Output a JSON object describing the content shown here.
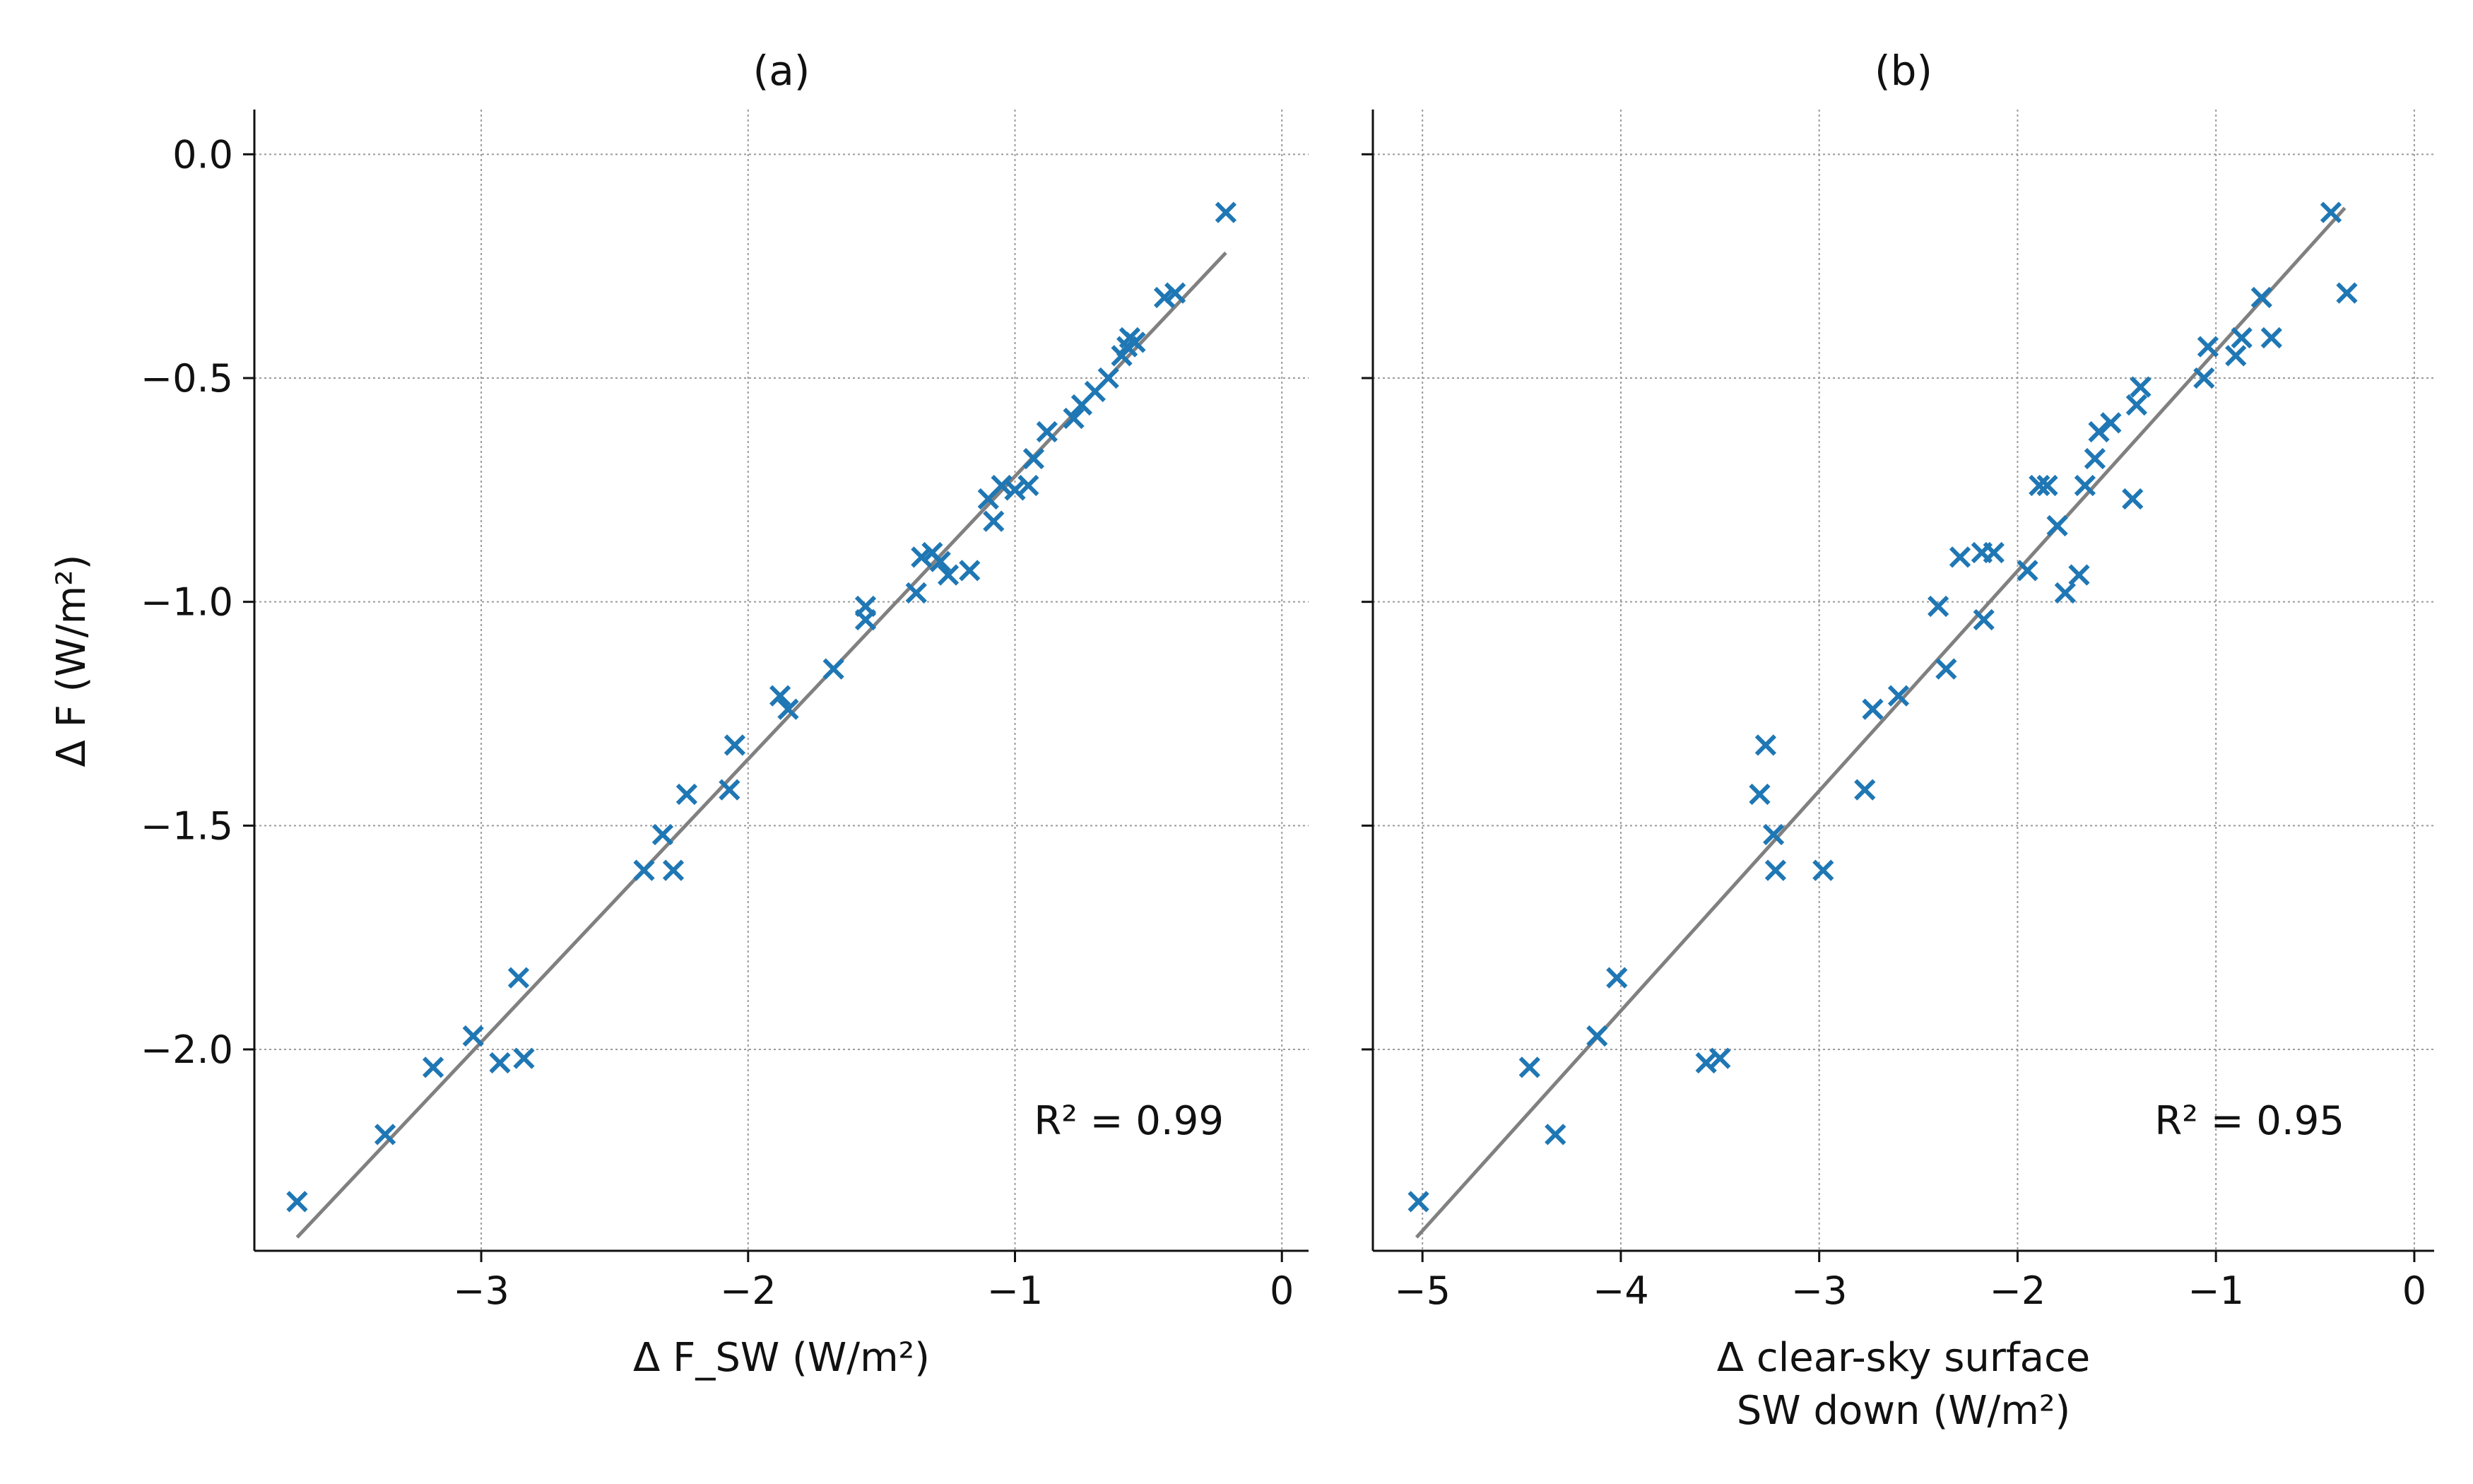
{
  "chart_data": [
    {
      "type": "scatter",
      "title": "(a)",
      "xlabel": "Δ F_SW (W/m²)",
      "ylabel": "Δ F (W/m²)",
      "xlim": [
        -3.85,
        0.1
      ],
      "ylim": [
        -2.45,
        0.1
      ],
      "xticks": [
        -3,
        -2,
        -1,
        0
      ],
      "xtick_labels": [
        "−3",
        "−2",
        "−1",
        "0"
      ],
      "yticks": [
        0.0,
        -0.5,
        -1.0,
        -1.5,
        -2.0
      ],
      "ytick_labels": [
        "0.0",
        "−0.5",
        "−1.0",
        "−1.5",
        "−2.0"
      ],
      "grid": true,
      "marker_color": "#1f77b4",
      "fit_color": "#808080",
      "annotation": "R² = 0.99",
      "fit_line": {
        "x": [
          -3.69,
          -0.21
        ],
        "y": [
          -2.42,
          -0.22
        ]
      },
      "points": [
        {
          "x": -3.69,
          "y": -2.34
        },
        {
          "x": -3.36,
          "y": -2.19
        },
        {
          "x": -3.18,
          "y": -2.04
        },
        {
          "x": -3.03,
          "y": -1.97
        },
        {
          "x": -2.93,
          "y": -2.03
        },
        {
          "x": -2.86,
          "y": -1.84
        },
        {
          "x": -2.84,
          "y": -2.02
        },
        {
          "x": -2.39,
          "y": -1.6
        },
        {
          "x": -2.32,
          "y": -1.52
        },
        {
          "x": -2.28,
          "y": -1.6
        },
        {
          "x": -2.23,
          "y": -1.43
        },
        {
          "x": -2.07,
          "y": -1.42
        },
        {
          "x": -2.05,
          "y": -1.32
        },
        {
          "x": -1.88,
          "y": -1.21
        },
        {
          "x": -1.85,
          "y": -1.24
        },
        {
          "x": -1.68,
          "y": -1.15
        },
        {
          "x": -1.56,
          "y": -1.01
        },
        {
          "x": -1.56,
          "y": -1.04
        },
        {
          "x": -1.37,
          "y": -0.98
        },
        {
          "x": -1.35,
          "y": -0.9
        },
        {
          "x": -1.31,
          "y": -0.89
        },
        {
          "x": -1.28,
          "y": -0.91
        },
        {
          "x": -1.25,
          "y": -0.94
        },
        {
          "x": -1.17,
          "y": -0.93
        },
        {
          "x": -1.1,
          "y": -0.77
        },
        {
          "x": -1.08,
          "y": -0.82
        },
        {
          "x": -1.05,
          "y": -0.74
        },
        {
          "x": -1.0,
          "y": -0.75
        },
        {
          "x": -0.95,
          "y": -0.74
        },
        {
          "x": -0.93,
          "y": -0.68
        },
        {
          "x": -0.88,
          "y": -0.62
        },
        {
          "x": -0.78,
          "y": -0.59
        },
        {
          "x": -0.75,
          "y": -0.56
        },
        {
          "x": -0.7,
          "y": -0.53
        },
        {
          "x": -0.65,
          "y": -0.5
        },
        {
          "x": -0.6,
          "y": -0.45
        },
        {
          "x": -0.58,
          "y": -0.43
        },
        {
          "x": -0.57,
          "y": -0.41
        },
        {
          "x": -0.55,
          "y": -0.42
        },
        {
          "x": -0.44,
          "y": -0.32
        },
        {
          "x": -0.4,
          "y": -0.31
        },
        {
          "x": -0.21,
          "y": -0.13
        }
      ]
    },
    {
      "type": "scatter",
      "title": "(b)",
      "xlabel": [
        "Δ clear-sky surface",
        "SW down (W/m²)"
      ],
      "ylabel": "",
      "xlim": [
        -5.25,
        0.1
      ],
      "ylim": [
        -2.45,
        0.1
      ],
      "xticks": [
        -5,
        -4,
        -3,
        -2,
        -1,
        0
      ],
      "xtick_labels": [
        "−5",
        "−4",
        "−3",
        "−2",
        "−1",
        "0"
      ],
      "yticks": [
        0.0,
        -0.5,
        -1.0,
        -1.5,
        -2.0
      ],
      "grid": true,
      "marker_color": "#1f77b4",
      "fit_color": "#808080",
      "annotation": "R² = 0.95",
      "fit_line": {
        "x": [
          -5.03,
          -0.35
        ],
        "y": [
          -2.42,
          -0.12
        ]
      },
      "points": [
        {
          "x": -5.02,
          "y": -2.34
        },
        {
          "x": -4.46,
          "y": -2.04
        },
        {
          "x": -4.33,
          "y": -2.19
        },
        {
          "x": -4.12,
          "y": -1.97
        },
        {
          "x": -4.02,
          "y": -1.84
        },
        {
          "x": -3.57,
          "y": -2.03
        },
        {
          "x": -3.5,
          "y": -2.02
        },
        {
          "x": -3.3,
          "y": -1.43
        },
        {
          "x": -3.27,
          "y": -1.32
        },
        {
          "x": -3.23,
          "y": -1.52
        },
        {
          "x": -3.22,
          "y": -1.6
        },
        {
          "x": -2.98,
          "y": -1.6
        },
        {
          "x": -2.77,
          "y": -1.42
        },
        {
          "x": -2.73,
          "y": -1.24
        },
        {
          "x": -2.6,
          "y": -1.21
        },
        {
          "x": -2.4,
          "y": -1.01
        },
        {
          "x": -2.36,
          "y": -1.15
        },
        {
          "x": -2.29,
          "y": -0.9
        },
        {
          "x": -2.18,
          "y": -0.89
        },
        {
          "x": -2.17,
          "y": -1.04
        },
        {
          "x": -2.12,
          "y": -0.89
        },
        {
          "x": -1.95,
          "y": -0.93
        },
        {
          "x": -1.89,
          "y": -0.74
        },
        {
          "x": -1.85,
          "y": -0.74
        },
        {
          "x": -1.8,
          "y": -0.83
        },
        {
          "x": -1.76,
          "y": -0.98
        },
        {
          "x": -1.69,
          "y": -0.94
        },
        {
          "x": -1.66,
          "y": -0.74
        },
        {
          "x": -1.61,
          "y": -0.68
        },
        {
          "x": -1.59,
          "y": -0.62
        },
        {
          "x": -1.53,
          "y": -0.6
        },
        {
          "x": -1.42,
          "y": -0.77
        },
        {
          "x": -1.4,
          "y": -0.56
        },
        {
          "x": -1.38,
          "y": -0.52
        },
        {
          "x": -1.06,
          "y": -0.5
        },
        {
          "x": -1.04,
          "y": -0.43
        },
        {
          "x": -0.9,
          "y": -0.45
        },
        {
          "x": -0.87,
          "y": -0.41
        },
        {
          "x": -0.77,
          "y": -0.32
        },
        {
          "x": -0.72,
          "y": -0.41
        },
        {
          "x": -0.42,
          "y": -0.13
        },
        {
          "x": -0.34,
          "y": -0.31
        }
      ]
    }
  ]
}
